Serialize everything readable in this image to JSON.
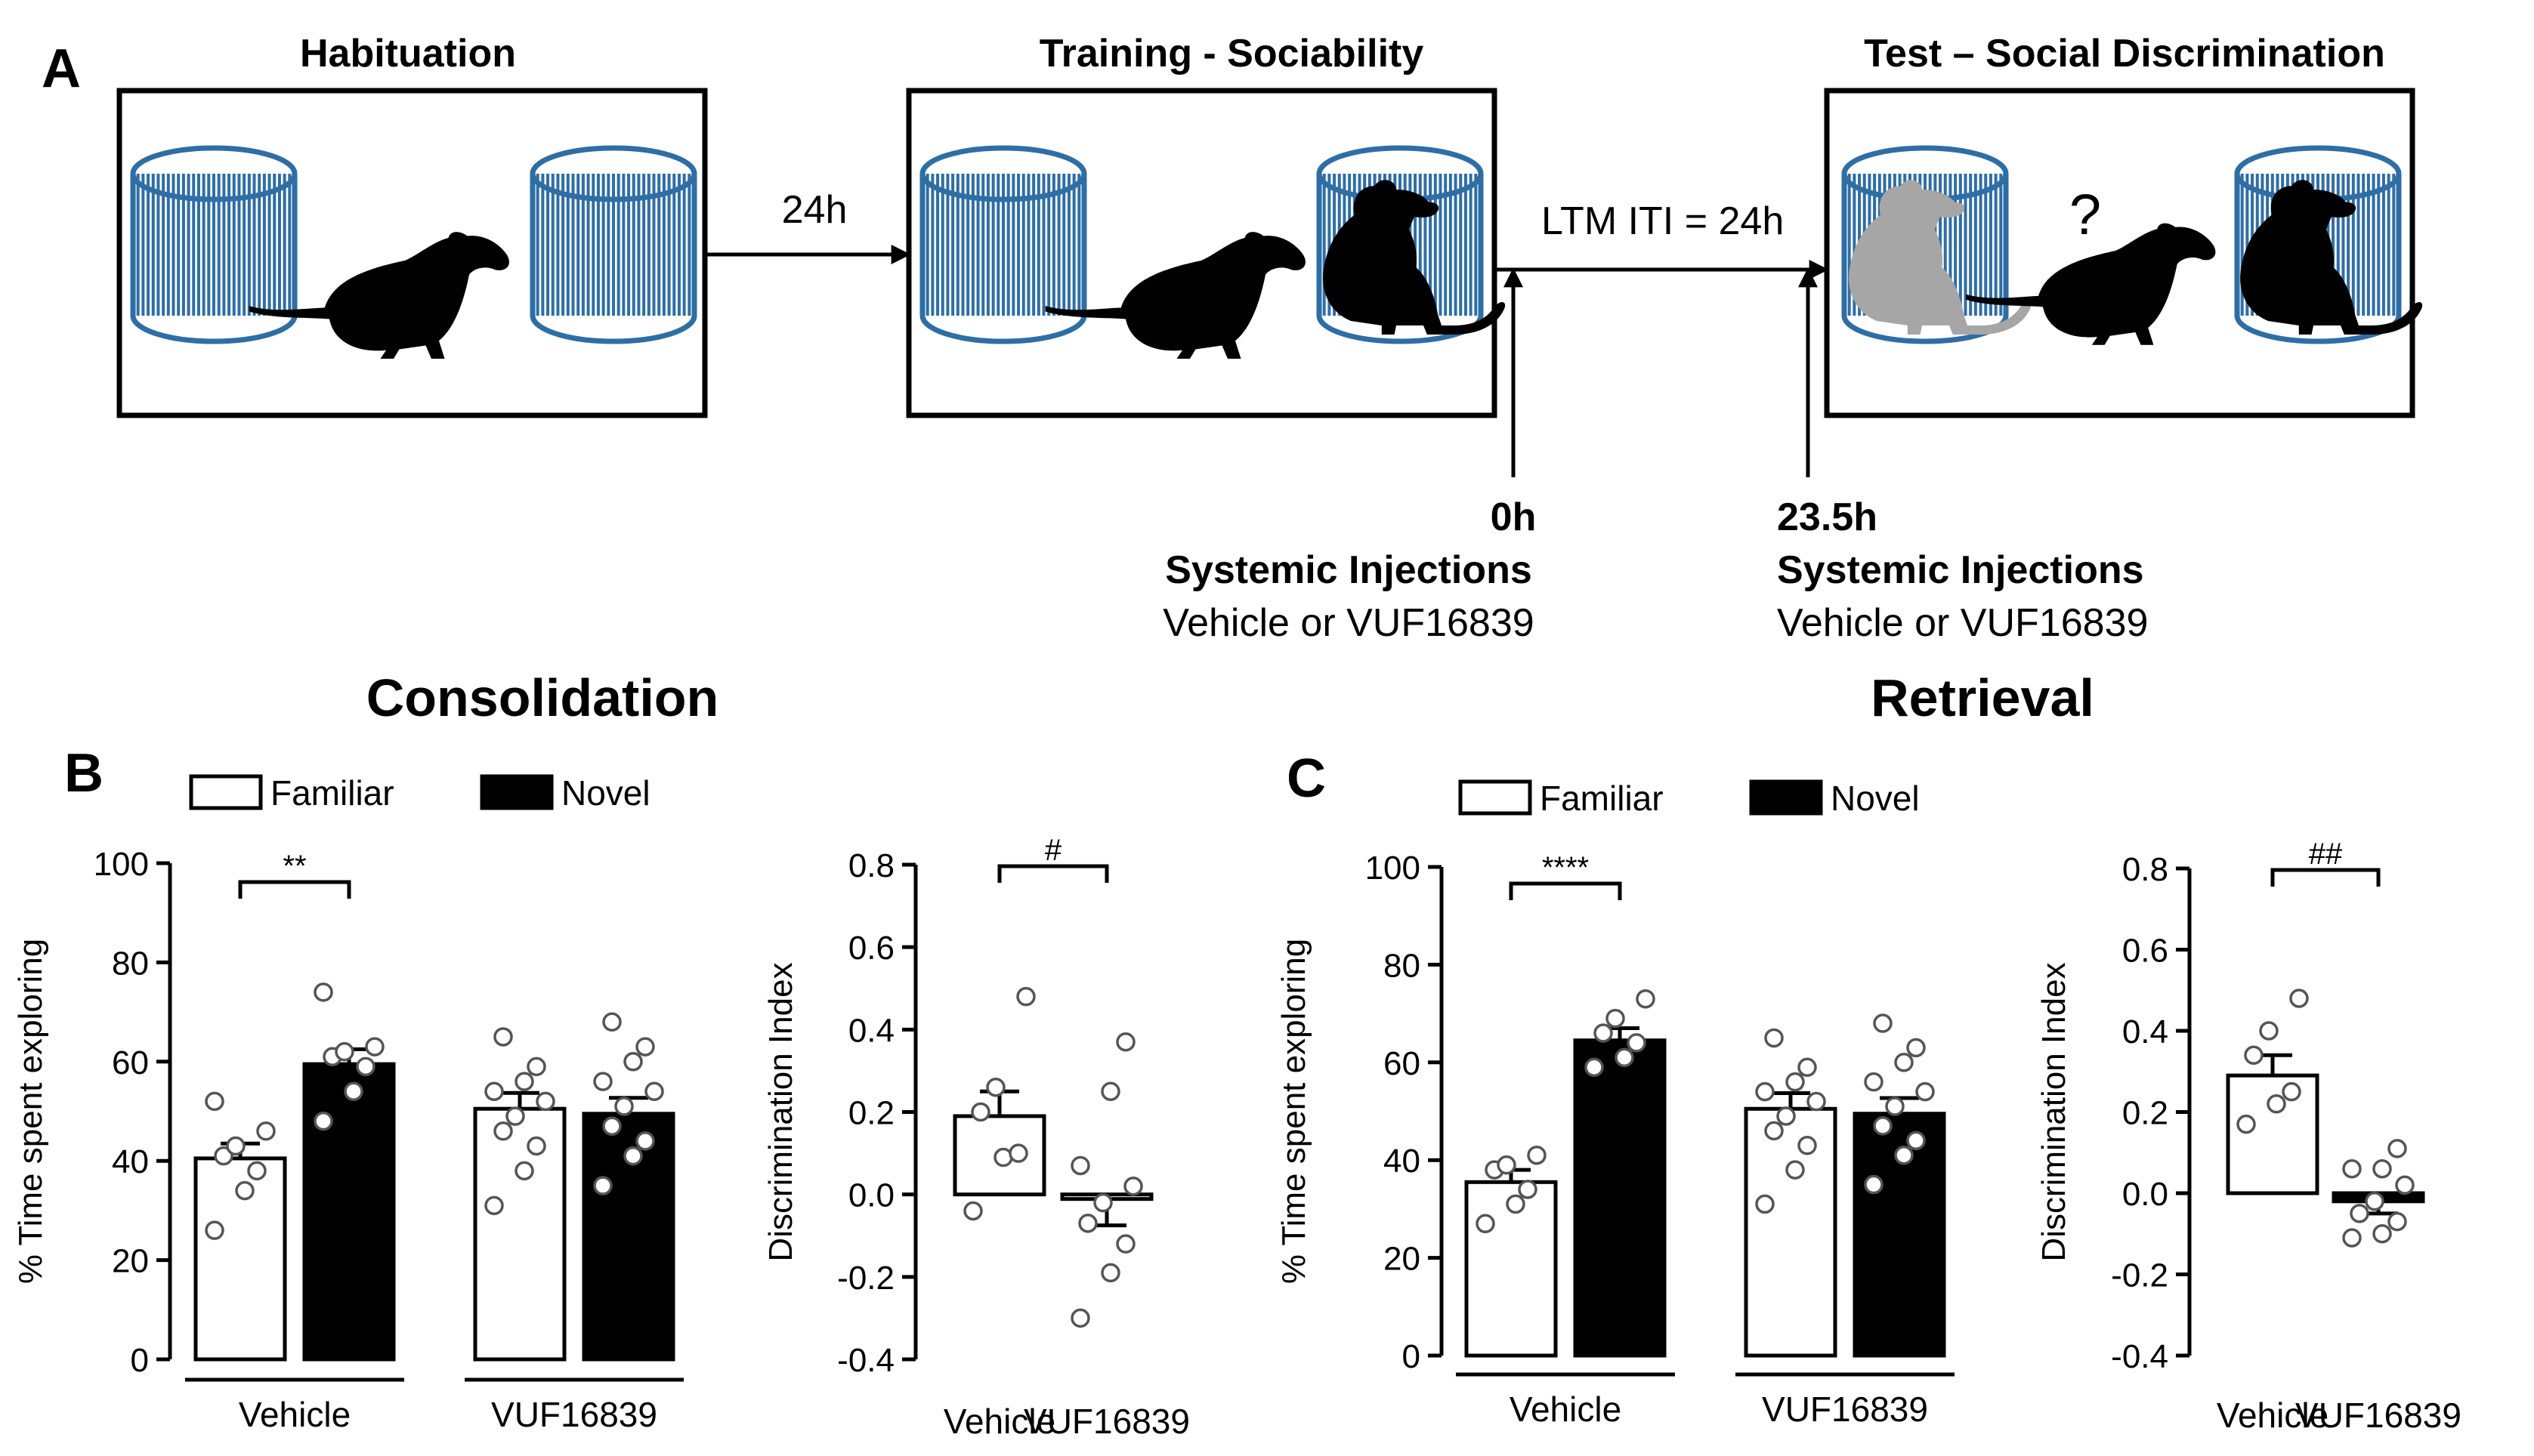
{
  "colors": {
    "cage": "#2f6ea5",
    "mouse": "#000000",
    "familiar_mouse": "#a6a6a6",
    "question": "#e8302a",
    "bar_familiar": "#ffffff",
    "bar_novel": "#000000"
  },
  "panel_a": {
    "label": "A",
    "stage_titles": [
      "Habituation",
      "Training - Sociability",
      "Test – Social Discrimination"
    ],
    "interval_1": "24h",
    "interval_2": "LTM ITI   = 24h",
    "question_mark": "?",
    "injection_1": {
      "time": "0h",
      "title": "Systemic Injections",
      "drugs": "Vehicle or VUF16839"
    },
    "injection_2": {
      "time": "23.5h",
      "title": "Systemic Injections",
      "drugs": "Vehicle or VUF16839"
    }
  },
  "section_titles": {
    "consolidation": "Consolidation",
    "retrieval": "Retrieval"
  },
  "legend": {
    "familiar": "Familiar",
    "novel": "Novel"
  },
  "chart_data": [
    {
      "panel": "B",
      "type": "bar",
      "ylabel": "% Time spent exploring",
      "ylim": [
        0,
        100
      ],
      "yticks": [
        0,
        20,
        40,
        60,
        80,
        100
      ],
      "groups": [
        "Vehicle",
        "VUF16839"
      ],
      "series": [
        {
          "name": "Familiar",
          "means": [
            40.5,
            50.5
          ],
          "sem": [
            3.0,
            3.2
          ]
        },
        {
          "name": "Novel",
          "means": [
            59.5,
            49.5
          ],
          "sem": [
            3.0,
            3.2
          ]
        }
      ],
      "points": {
        "Familiar": [
          [
            26,
            34,
            38,
            41,
            43,
            46,
            52
          ],
          [
            31,
            38,
            43,
            46,
            49,
            52,
            54,
            56,
            59,
            65
          ]
        ],
        "Novel": [
          [
            48,
            54,
            59,
            61,
            62,
            63,
            74
          ],
          [
            35,
            41,
            44,
            47,
            51,
            54,
            56,
            60,
            63,
            68
          ]
        ]
      },
      "significance": {
        "label": "**",
        "group": "Vehicle"
      }
    },
    {
      "panel": "B",
      "type": "bar",
      "ylabel": "Discrimination Index",
      "ylim": [
        -0.4,
        0.8
      ],
      "yticks": [
        -0.4,
        -0.2,
        0.0,
        0.2,
        0.4,
        0.6,
        0.8
      ],
      "categories": [
        "Vehicle",
        "VUF16839"
      ],
      "values": [
        0.19,
        -0.01
      ],
      "sem": [
        0.06,
        0.065
      ],
      "fills": [
        "#ffffff",
        "#ffffff"
      ],
      "points": [
        [
          -0.04,
          0.09,
          0.1,
          0.2,
          0.26,
          0.48
        ],
        [
          -0.3,
          -0.19,
          -0.12,
          -0.07,
          -0.02,
          0.02,
          0.07,
          0.25,
          0.37
        ]
      ],
      "significance": {
        "label": "#"
      }
    },
    {
      "panel": "C",
      "type": "bar",
      "ylabel": "% Time spent exploring",
      "ylim": [
        0,
        100
      ],
      "yticks": [
        0,
        20,
        40,
        60,
        80,
        100
      ],
      "groups": [
        "Vehicle",
        "VUF16839"
      ],
      "series": [
        {
          "name": "Familiar",
          "means": [
            35.5,
            50.5
          ],
          "sem": [
            2.5,
            3.2
          ]
        },
        {
          "name": "Novel",
          "means": [
            64.5,
            49.5
          ],
          "sem": [
            2.5,
            3.2
          ]
        }
      ],
      "points": {
        "Familiar": [
          [
            27,
            31,
            34,
            38,
            39,
            41
          ],
          [
            31,
            38,
            43,
            46,
            49,
            52,
            54,
            56,
            59,
            65
          ]
        ],
        "Novel": [
          [
            59,
            61,
            64,
            66,
            69,
            73
          ],
          [
            35,
            41,
            44,
            47,
            51,
            54,
            56,
            60,
            63,
            68
          ]
        ]
      },
      "significance": {
        "label": "****",
        "group": "Vehicle"
      }
    },
    {
      "panel": "C",
      "type": "bar",
      "ylabel": "Discrimination Index",
      "ylim": [
        -0.4,
        0.8
      ],
      "yticks": [
        -0.4,
        -0.2,
        0.0,
        0.2,
        0.4,
        0.6,
        0.8
      ],
      "categories": [
        "Vehicle",
        "VUF16839"
      ],
      "values": [
        0.29,
        -0.02
      ],
      "sem": [
        0.05,
        0.03
      ],
      "fills": [
        "#ffffff",
        "#000000"
      ],
      "points": [
        [
          0.17,
          0.22,
          0.25,
          0.34,
          0.4,
          0.48
        ],
        [
          -0.11,
          -0.1,
          -0.07,
          -0.05,
          -0.02,
          0.02,
          0.06,
          0.06,
          0.11
        ]
      ],
      "significance": {
        "label": "##"
      }
    }
  ]
}
